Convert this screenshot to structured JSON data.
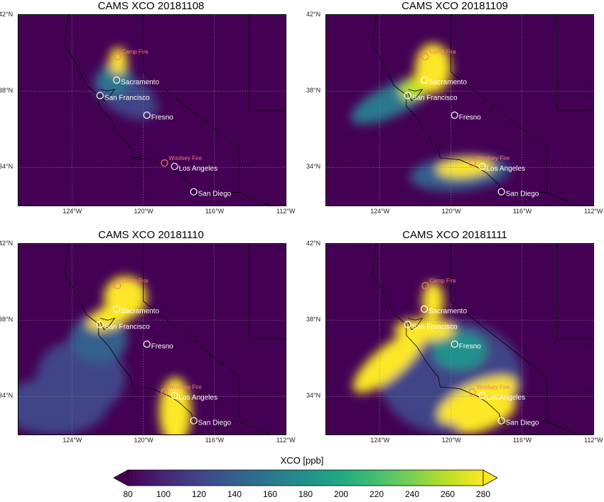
{
  "panels": [
    {
      "title": "CAMS XCO 20181108"
    },
    {
      "title": "CAMS XCO 20181109"
    },
    {
      "title": "CAMS XCO 20181110"
    },
    {
      "title": "CAMS XCO 20181111"
    }
  ],
  "axis": {
    "y_ticks": [
      "42°N",
      "38°N",
      "34°N"
    ],
    "x_ticks": [
      "124°W",
      "120°W",
      "116°W",
      "112°W"
    ],
    "lat_range": [
      32,
      42
    ],
    "lon_range": [
      -127,
      -112
    ]
  },
  "cities": [
    {
      "name": "Sacramento",
      "lat": 38.58,
      "lon": -121.49,
      "type": "city"
    },
    {
      "name": "San Francisco",
      "lat": 37.77,
      "lon": -122.42,
      "type": "city"
    },
    {
      "name": "Fresno",
      "lat": 36.74,
      "lon": -119.79,
      "type": "city"
    },
    {
      "name": "Los Angeles",
      "lat": 34.05,
      "lon": -118.24,
      "type": "city"
    },
    {
      "name": "San Diego",
      "lat": 32.72,
      "lon": -117.16,
      "type": "city"
    },
    {
      "name": "Camp Fire",
      "lat": 39.81,
      "lon": -121.44,
      "type": "fire"
    },
    {
      "name": "Woolsey Fire",
      "lat": 34.23,
      "lon": -118.8,
      "type": "fire"
    }
  ],
  "colorbar": {
    "label": "XCO [ppb]",
    "ticks": [
      "80",
      "100",
      "120",
      "140",
      "160",
      "180",
      "200",
      "220",
      "240",
      "260",
      "280"
    ],
    "min": 80,
    "max": 280,
    "colormap": "viridis"
  },
  "colors": {
    "background": "#440154",
    "fire_marker": "#f08070",
    "city_marker": "#ffffff",
    "plume_high": "#fde725"
  }
}
